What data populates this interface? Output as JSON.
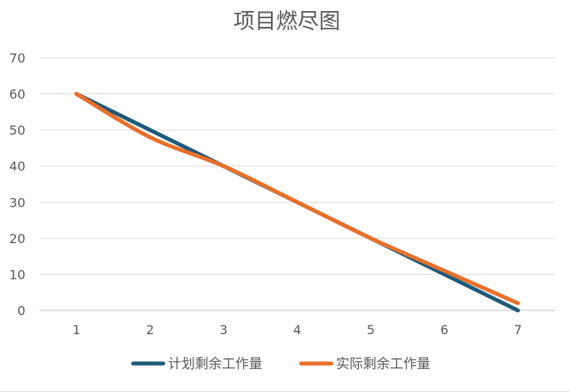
{
  "chart_data": {
    "type": "line",
    "title": "项目燃尽图",
    "x": [
      1,
      2,
      3,
      4,
      5,
      6,
      7
    ],
    "xlabel": "",
    "ylabel": "",
    "ylim": [
      0,
      70
    ],
    "yticks": [
      0,
      10,
      20,
      30,
      40,
      50,
      60,
      70
    ],
    "grid": true,
    "legend": "bottom",
    "series": [
      {
        "name": "计划剩余工作量",
        "values": [
          60,
          50,
          40,
          30,
          20,
          10,
          0
        ],
        "color": "#1f5a7a",
        "smooth": false
      },
      {
        "name": "实际剩余工作量",
        "values": [
          60,
          48,
          40,
          30,
          20,
          11,
          2
        ],
        "color": "#e8702a",
        "smooth": true
      }
    ]
  }
}
